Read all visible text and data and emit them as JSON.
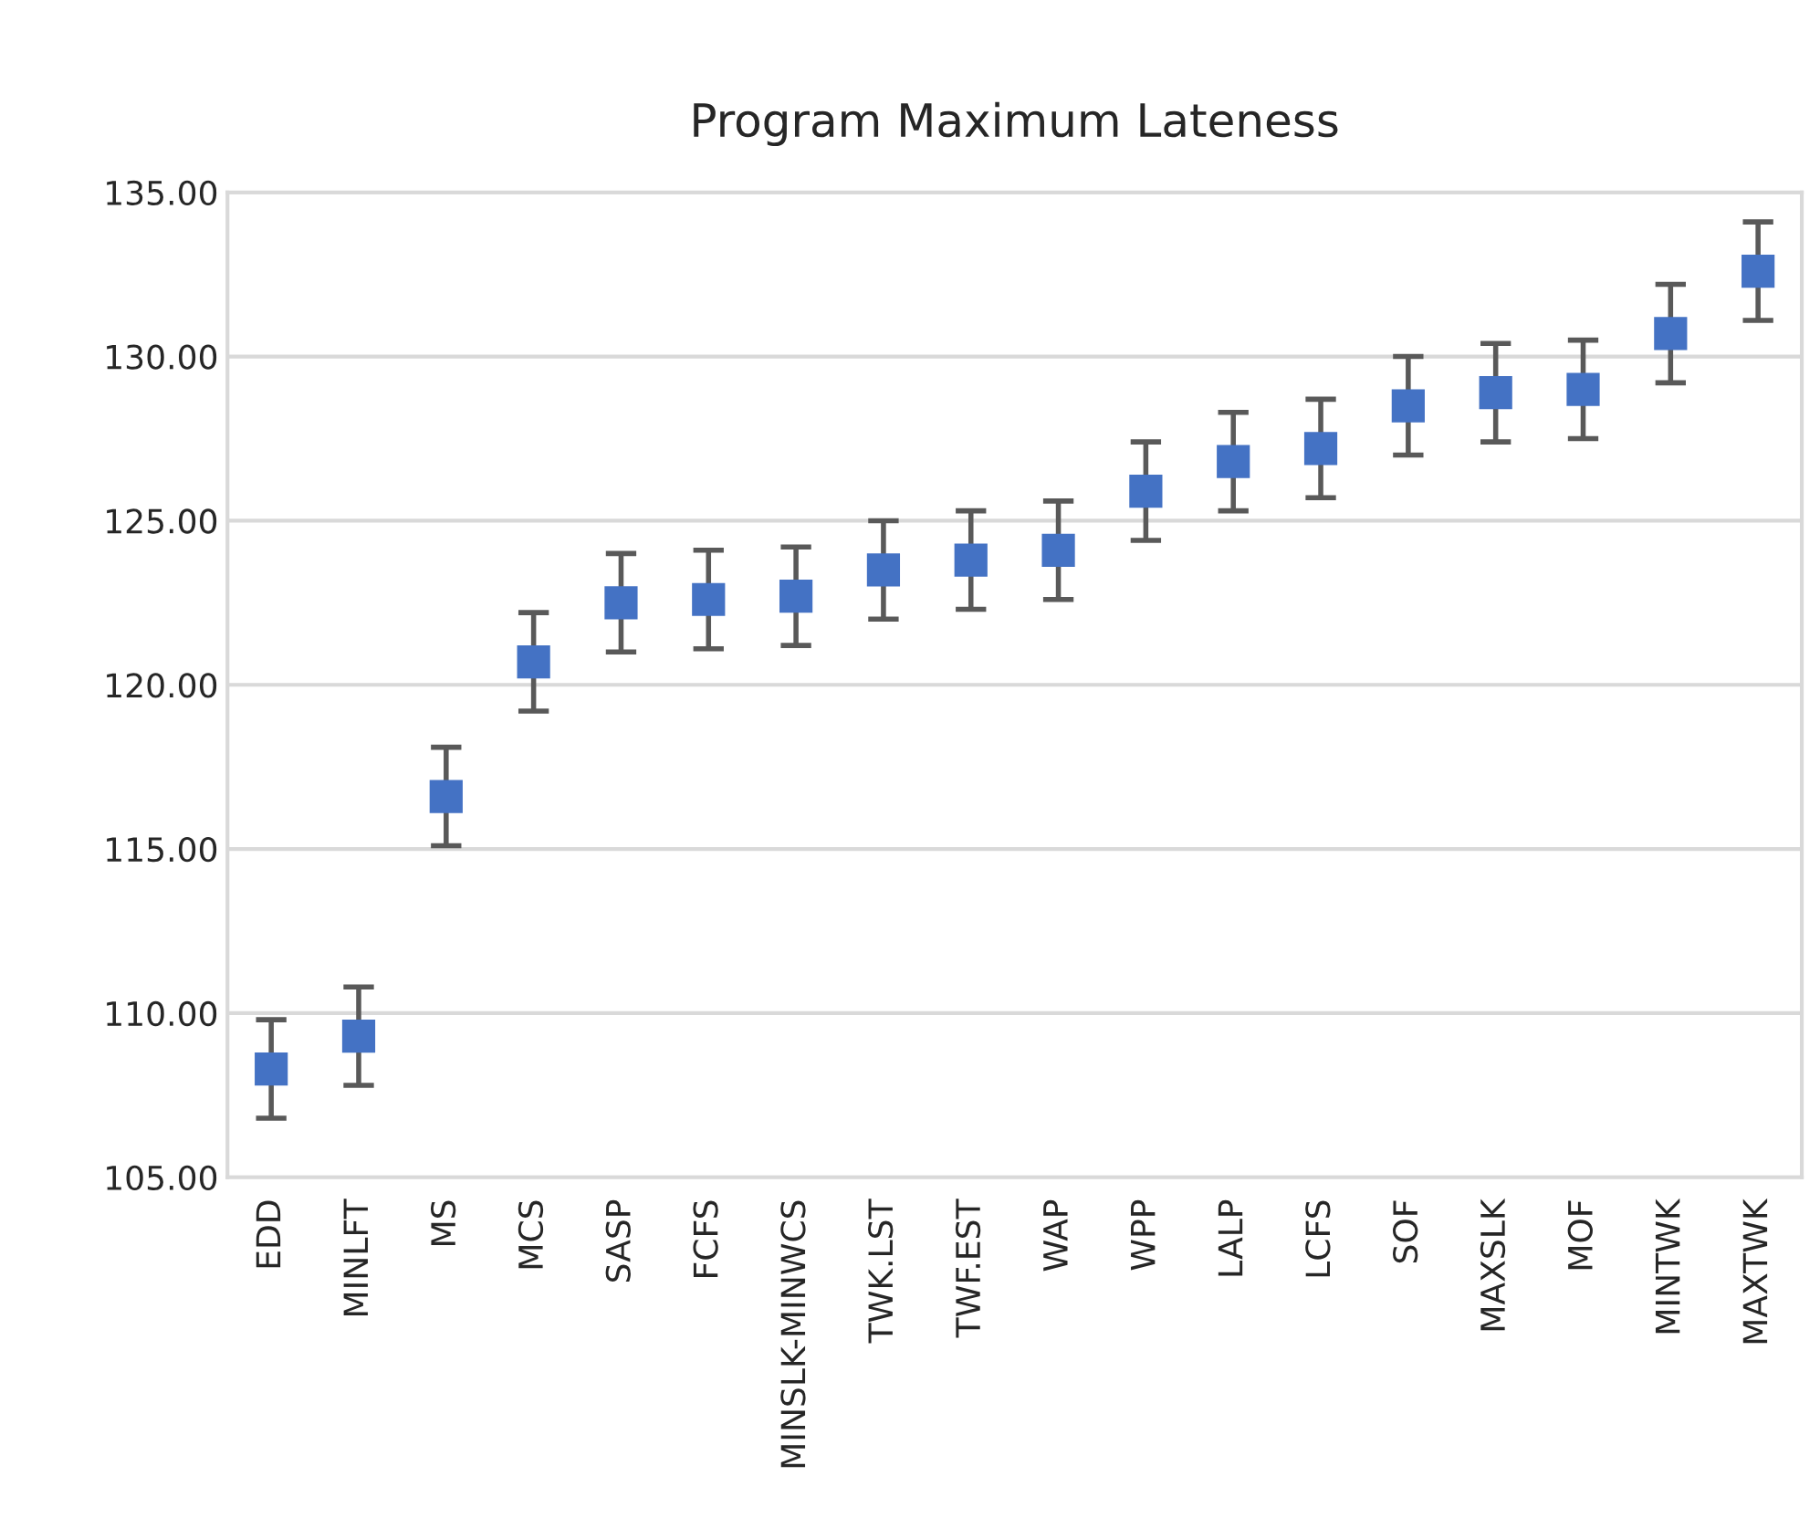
{
  "chart_data": {
    "type": "scatter",
    "title": "Program Maximum Lateness",
    "categories": [
      "EDD",
      "MINLFT",
      "MS",
      "MCS",
      "SASP",
      "FCFS",
      "MINSLK-MINWCS",
      "TWK.LST",
      "TWF.EST",
      "WAP",
      "WPP",
      "LALP",
      "LCFS",
      "SOF",
      "MAXSLK",
      "MOF",
      "MINTWK",
      "MAXTWK"
    ],
    "values": [
      108.3,
      109.3,
      116.6,
      120.7,
      122.5,
      122.6,
      122.7,
      123.5,
      123.8,
      124.1,
      125.9,
      126.8,
      127.2,
      128.5,
      128.9,
      129.0,
      130.7,
      132.6
    ],
    "errors": [
      1.5,
      1.5,
      1.5,
      1.5,
      1.5,
      1.5,
      1.5,
      1.5,
      1.5,
      1.5,
      1.5,
      1.5,
      1.5,
      1.5,
      1.5,
      1.5,
      1.5,
      1.5
    ],
    "color": "#4472c4",
    "marker": "square",
    "ylim": [
      105,
      135
    ],
    "yticks": [
      {
        "value": 105,
        "label": "105.00"
      },
      {
        "value": 110,
        "label": "110.00"
      },
      {
        "value": 115,
        "label": "115.00"
      },
      {
        "value": 120,
        "label": "120.00"
      },
      {
        "value": 125,
        "label": "125.00"
      },
      {
        "value": 130,
        "label": "130.00"
      },
      {
        "value": 135,
        "label": "135.00"
      }
    ],
    "grid": "y"
  }
}
